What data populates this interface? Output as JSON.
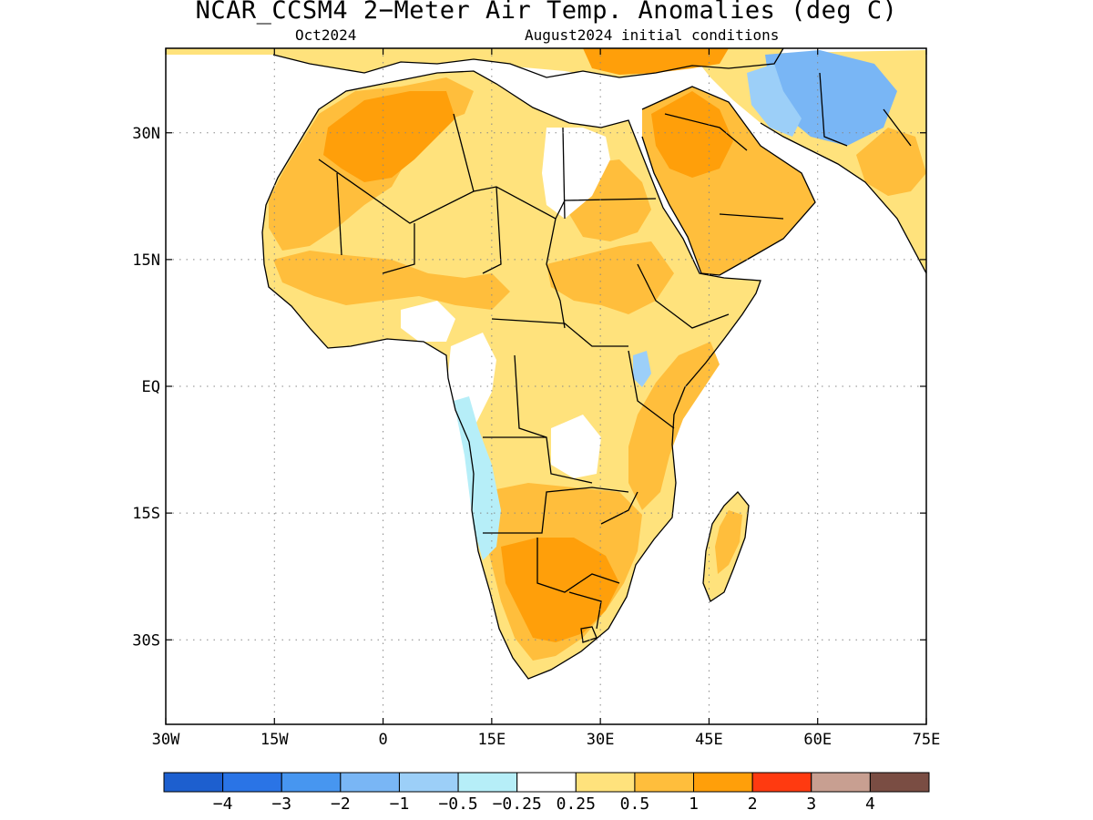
{
  "title": "NCAR_CCSM4 2−Meter Air Temp. Anomalies (deg C)",
  "subtitle_left": "Oct2024",
  "subtitle_right": "August2024 initial conditions",
  "map": {
    "lon_range": [
      -30,
      75
    ],
    "lat_range": [
      -40,
      40
    ],
    "lon_ticks": [
      {
        "value": -30,
        "label": "30W"
      },
      {
        "value": -15,
        "label": "15W"
      },
      {
        "value": 0,
        "label": "0"
      },
      {
        "value": 15,
        "label": "15E"
      },
      {
        "value": 30,
        "label": "30E"
      },
      {
        "value": 45,
        "label": "45E"
      },
      {
        "value": 60,
        "label": "60E"
      },
      {
        "value": 75,
        "label": "75E"
      }
    ],
    "lat_ticks": [
      {
        "value": 30,
        "label": "30N"
      },
      {
        "value": 15,
        "label": "15N"
      },
      {
        "value": 0,
        "label": "EQ"
      },
      {
        "value": -15,
        "label": "15S"
      },
      {
        "value": -30,
        "label": "30S"
      }
    ],
    "grid": "dotted"
  },
  "colorbar": {
    "colors": [
      "#1d5fcf",
      "#2a74e6",
      "#4796f0",
      "#79b6f5",
      "#9ccff8",
      "#b6eef8",
      "#ffffff",
      "#ffe27c",
      "#ffbe3c",
      "#ff9f0a",
      "#ff3a10",
      "#c89f91",
      "#7a4d43"
    ],
    "labels": [
      "−4",
      "−3",
      "−2",
      "−1",
      "−0.5",
      "−0.25",
      "0.25",
      "0.5",
      "1",
      "2",
      "3",
      "4"
    ]
  },
  "anomaly_colors": {
    "light_orange": "#ffe27c",
    "orange": "#ffbe3c",
    "dark_orange": "#ff9f0a",
    "light_blue": "#b6eef8",
    "blue": "#79b6f5",
    "mid_blue": "#9ccff8"
  }
}
